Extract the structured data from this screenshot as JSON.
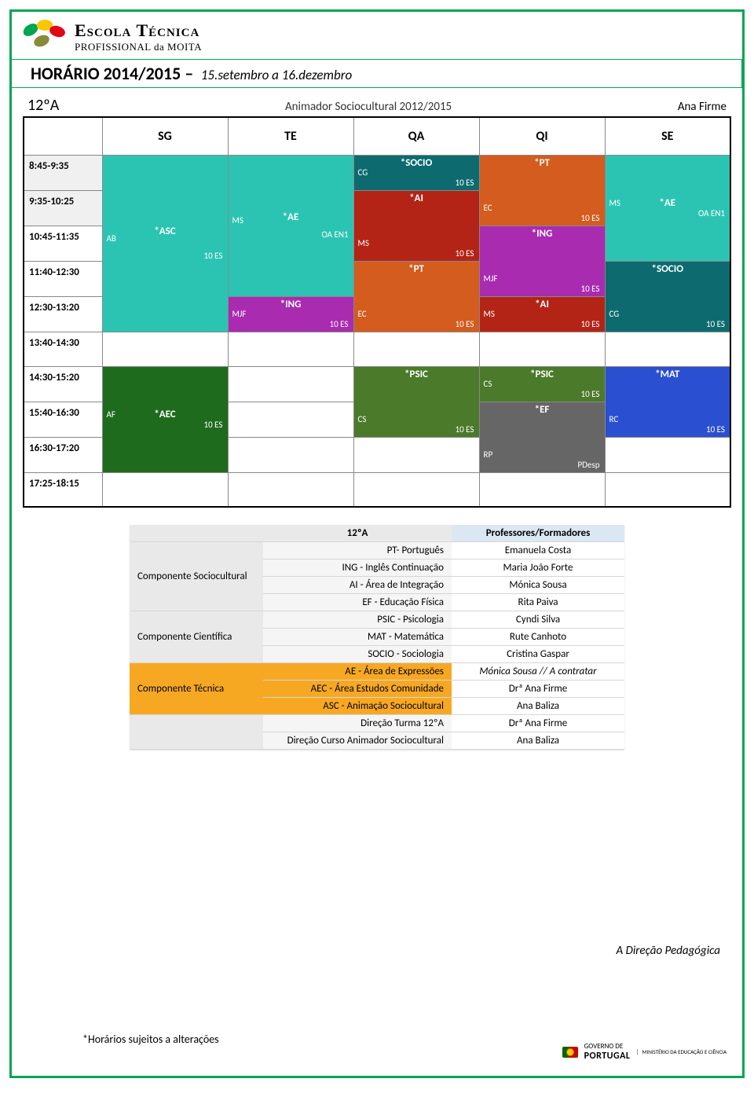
{
  "logo": {
    "line1": "Escola Técnica",
    "line2": "PROFISSIONAL da MOITA"
  },
  "title": {
    "main": "HORÁRIO 2014/2015 –",
    "sub": "15.setembro a 16.dezembro"
  },
  "sched_head": {
    "class": "12ºA",
    "course": "Animador Sociocultural 2012/2015",
    "teacher": "Ana Firme"
  },
  "days": [
    "SG",
    "TE",
    "QA",
    "QI",
    "SE"
  ],
  "times": [
    {
      "label": "8:45-9:35",
      "shade": true
    },
    {
      "label": "9:35-10:25",
      "shade": true
    },
    {
      "label": "10:45-11:35",
      "shade": false
    },
    {
      "label": "11:40-12:30",
      "shade": false
    },
    {
      "label": "12:30-13:20",
      "shade": false
    },
    {
      "label": "13:40-14:30",
      "shade": false
    },
    {
      "label": "14:30-15:20",
      "shade": false
    },
    {
      "label": "15:40-16:30",
      "shade": false
    },
    {
      "label": "16:30-17:20",
      "shade": false
    },
    {
      "label": "17:25-18:15",
      "shade": false
    }
  ],
  "colors": {
    "teal": "#2bc4b2",
    "darkteal": "#0d6b6f",
    "orange": "#d35c1e",
    "red": "#b32416",
    "magenta": "#a92bb0",
    "darkgreen": "#1e6b1e",
    "olive": "#4a7a2a",
    "blue": "#2b4fd1",
    "grey": "#666"
  },
  "blocks": {
    "asc": {
      "subj": "*ASC",
      "tchr": "AB",
      "room": "10 ES",
      "color": "teal"
    },
    "ae_te": {
      "subj": "*AE",
      "tchr": "MS",
      "room": "OA EN1",
      "color": "teal"
    },
    "ae_se": {
      "subj": "*AE",
      "tchr": "MS",
      "room": "OA EN1",
      "color": "teal"
    },
    "ing_te": {
      "subj": "*ING",
      "tchr": "MJF",
      "room": "10 ES",
      "color": "magenta"
    },
    "ing_qi": {
      "subj": "*ING",
      "tchr": "MJF",
      "room": "10 ES",
      "color": "magenta"
    },
    "socio_qa": {
      "subj": "*SOCIO",
      "tchr": "CG",
      "room": "10 ES",
      "color": "darkteal"
    },
    "socio_se": {
      "subj": "*SOCIO",
      "tchr": "CG",
      "room": "10 ES",
      "color": "darkteal"
    },
    "ai_qa": {
      "subj": "*AI",
      "tchr": "MS",
      "room": "10 ES",
      "color": "red"
    },
    "ai_qi": {
      "subj": "*AI",
      "tchr": "MS",
      "room": "10 ES",
      "color": "red"
    },
    "pt_qa": {
      "subj": "*PT",
      "tchr": "EC",
      "room": "10 ES",
      "color": "orange"
    },
    "pt_qi": {
      "subj": "*PT",
      "tchr": "EC",
      "room": "10 ES",
      "color": "orange"
    },
    "aec": {
      "subj": "*AEC",
      "tchr": "AF",
      "room": "10 ES",
      "color": "darkgreen"
    },
    "psic_qa": {
      "subj": "*PSIC",
      "tchr": "CS",
      "room": "10 ES",
      "color": "olive"
    },
    "psic_qi": {
      "subj": "*PSIC",
      "tchr": "CS",
      "room": "10 ES",
      "color": "olive"
    },
    "mat": {
      "subj": "*MAT",
      "tchr": "RC",
      "room": "10 ES",
      "color": "blue"
    },
    "ef": {
      "subj": "*EF",
      "tchr": "RP",
      "room": "PDesp",
      "color": "grey"
    }
  },
  "legend": {
    "header": {
      "class": "12ºA",
      "prof": "Professores/Formadores"
    },
    "sections": [
      {
        "comp": "Componente Sociocultural",
        "tech": false,
        "rows": [
          {
            "subj": "PT- Português",
            "prof": "Emanuela Costa"
          },
          {
            "subj": "ING - Inglês Continuação",
            "prof": "Maria João Forte"
          },
          {
            "subj": "AI - Área de Integração",
            "prof": "Mónica Sousa"
          },
          {
            "subj": "EF - Educação Física",
            "prof": "Rita Paiva"
          }
        ]
      },
      {
        "comp": "Componente Científica",
        "tech": false,
        "rows": [
          {
            "subj": "PSIC - Psicologia",
            "prof": "Cyndi Silva"
          },
          {
            "subj": "MAT - Matemática",
            "prof": "Rute Canhoto"
          },
          {
            "subj": "SOCIO - Sociologia",
            "prof": "Cristina Gaspar"
          }
        ]
      },
      {
        "comp": "Componente Técnica",
        "tech": true,
        "rows": [
          {
            "subj": "AE - Área de Expressões",
            "prof": "Mónica Sousa // A contratar",
            "italic": true
          },
          {
            "subj": "AEC - Área Estudos Comunidade",
            "prof": "Drª Ana Firme"
          },
          {
            "subj": "ASC - Animação Sociocultural",
            "prof": "Ana Baliza"
          }
        ]
      },
      {
        "comp": "",
        "tech": false,
        "rows": [
          {
            "subj": "Direção Turma 12ºA",
            "prof": "Drª Ana Firme"
          },
          {
            "subj": "Direção Curso Animador Sociocultural",
            "prof": "Ana Baliza"
          }
        ]
      }
    ]
  },
  "footer_note": "A Direção Pedagógica",
  "footnote": "*Horários sujeitos a alterações",
  "gov": {
    "line1": "GOVERNO DE",
    "line2": "PORTUGAL",
    "mine": "MINISTÉRIO DA EDUCAÇÃO\nE CIÊNCIA"
  }
}
